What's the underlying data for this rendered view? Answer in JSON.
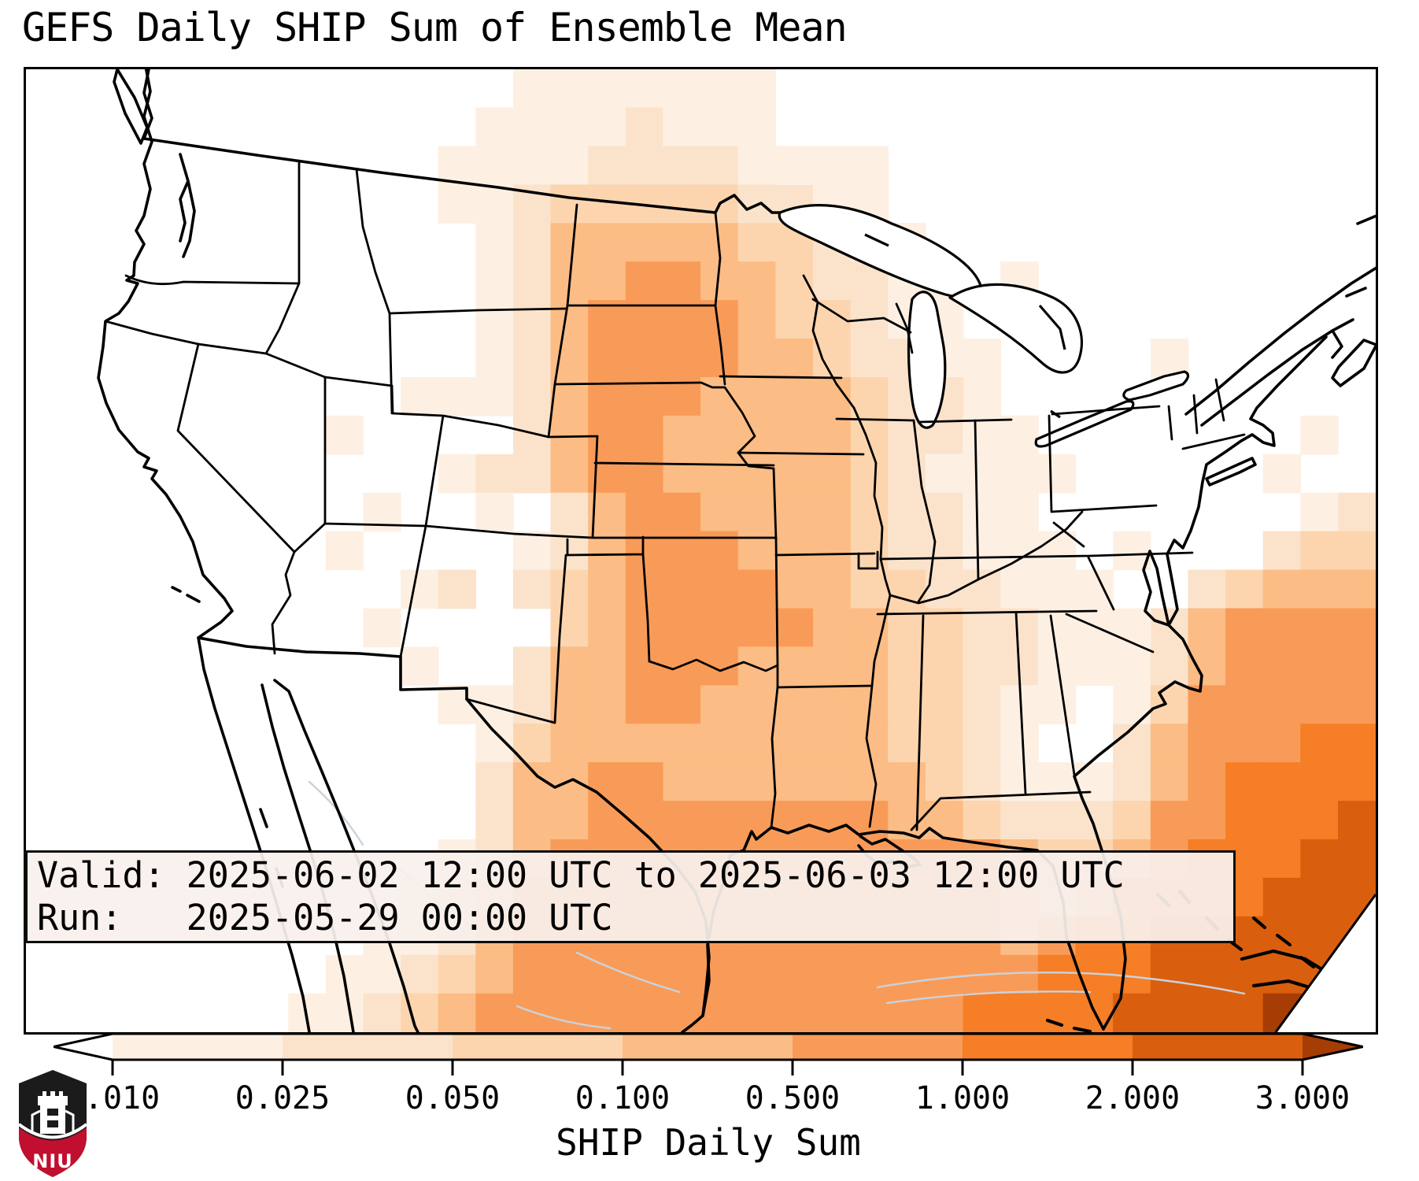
{
  "title": "GEFS Daily SHIP Sum of Ensemble Mean",
  "info_box": {
    "valid_line": "Valid: 2025-06-02 12:00 UTC to 2025-06-03 12:00 UTC",
    "run_line": "Run:   2025-05-29 00:00 UTC"
  },
  "colorbar": {
    "label": "SHIP Daily Sum",
    "tick_labels": [
      "0.010",
      "0.025",
      "0.050",
      "0.100",
      "0.500",
      "1.000",
      "2.000",
      "3.000"
    ],
    "segment_colors": [
      "#fdf0e3",
      "#fbe3cb",
      "#fcd5af",
      "#fbbc85",
      "#f99b58",
      "#f57e26",
      "#d95f0e"
    ],
    "under_arrow_color": "#ffffff",
    "over_arrow_color": "#a63d04",
    "outline_color": "#000000"
  },
  "logo": {
    "text": "NIU",
    "shield_black": "#1b1b1b",
    "shield_red": "#c10f2f"
  },
  "chart_data": {
    "type": "heatmap",
    "title": "GEFS Daily SHIP Sum of Ensemble Mean",
    "legend_label": "SHIP Daily Sum",
    "levels": [
      0.01,
      0.025,
      0.05,
      0.1,
      0.5,
      1.0,
      2.0,
      3.0
    ],
    "palette": {
      "0": "none",
      "1": "#fdf0e3",
      "2": "#fbe3cb",
      "3": "#fcd5af",
      "4": "#fbbc85",
      "5": "#f99b58",
      "6": "#f57e26",
      "7": "#d95f0e",
      "8": "#a63d04"
    },
    "grid": {
      "cols": 36,
      "rows": 25,
      "cell_levels": [
        "000000000000011111110000000000000000",
        "000000000000111121110000000000000000",
        "000000000001111222211100000000000000",
        "000000000001123333322110000000000000",
        "000000000000124444433211000000000000",
        "000000000000124455443221000000000000",
        "000000000000124555543321100000000000",
        "000000000000124555544322100000000000",
        "000000000001124555444432210000000000",
        "000000000000024554444432211000000000",
        "000000000000024554444432111000000000",
        "000000000000002455444432211000000012",
        "000000000000012455544432211100000233",
        "000000000000023455554433221100023444",
        "000000000000003455555443322111245555",
        "000000000000024455544443322111245555",
        "000000000000124455444443321101355555",
        "000000000000134444444443321002455566",
        "000000000000244554444444321112456666",
        "000000000000244555555554432223556667",
        "000000000001245555555555554334566677",
        "000000000012355555555555554346666777",
        "000000000112455555555555554566777777",
        "000000001123455555555555555666777777",
        "000000011234555555555555566667777887"
      ],
      "speckles": [
        [
          8,
          9,
          1
        ],
        [
          10,
          8,
          1
        ],
        [
          11,
          10,
          1
        ],
        [
          9,
          11,
          1
        ],
        [
          8,
          12,
          1
        ],
        [
          10,
          13,
          1
        ],
        [
          11,
          13,
          2
        ],
        [
          9,
          14,
          1
        ],
        [
          10,
          15,
          1
        ],
        [
          11,
          16,
          1
        ],
        [
          12,
          10,
          2
        ],
        [
          12,
          11,
          1
        ],
        [
          24,
          5,
          1
        ],
        [
          24,
          6,
          1
        ],
        [
          25,
          7,
          1
        ],
        [
          24,
          8,
          2
        ],
        [
          25,
          9,
          1
        ],
        [
          26,
          9,
          1
        ],
        [
          26,
          10,
          1
        ],
        [
          27,
          10,
          1
        ],
        [
          29,
          12,
          1
        ],
        [
          28,
          13,
          1
        ],
        [
          29,
          14,
          1
        ],
        [
          20,
          2,
          1
        ],
        [
          22,
          2,
          1
        ],
        [
          23,
          4,
          1
        ],
        [
          26,
          5,
          1
        ],
        [
          30,
          7,
          1
        ],
        [
          33,
          10,
          1
        ],
        [
          34,
          9,
          1
        ]
      ]
    }
  }
}
